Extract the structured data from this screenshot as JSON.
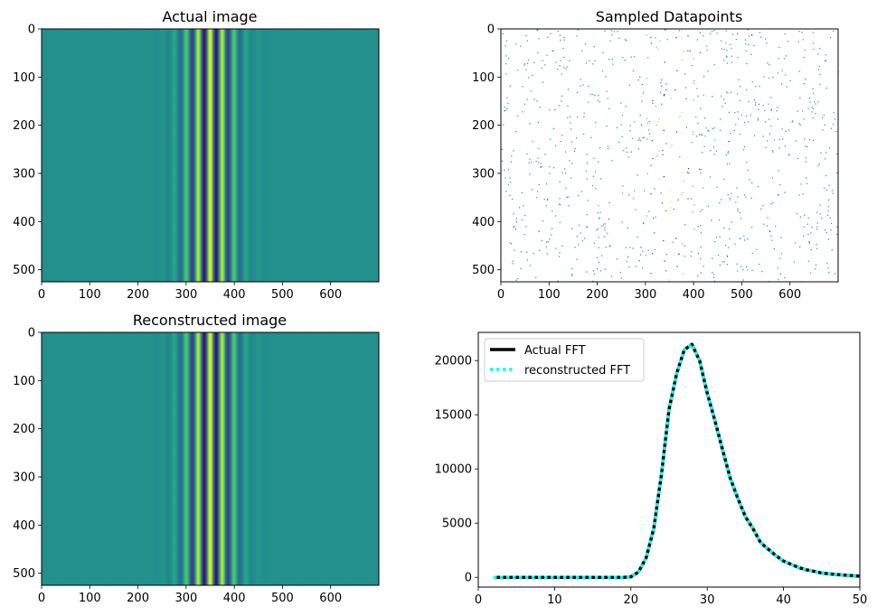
{
  "chart_data": [
    {
      "type": "heatmap",
      "title": "Actual image",
      "image_shape": [
        525,
        700
      ],
      "pattern": "vertical stripes (cosine carrier under Gaussian envelope), constant along rows",
      "stripe_center_x": 350,
      "stripe_period_px": 25,
      "envelope_sigma_px": 40,
      "colormap": "viridis",
      "xlim": [
        0,
        700
      ],
      "ylim": [
        525,
        0
      ],
      "xticks": [
        0,
        100,
        200,
        300,
        400,
        500,
        600
      ],
      "yticks": [
        0,
        100,
        200,
        300,
        400,
        500
      ],
      "xlabel": "",
      "ylabel": ""
    },
    {
      "type": "scatter",
      "title": "Sampled Datapoints",
      "description": "sparse random pixel samples on white background",
      "xlim": [
        0,
        700
      ],
      "ylim": [
        525,
        0
      ],
      "xticks": [
        0,
        100,
        200,
        300,
        400,
        500,
        600
      ],
      "yticks": [
        0,
        100,
        200,
        300,
        400,
        500
      ],
      "xlabel": "",
      "ylabel": ""
    },
    {
      "type": "heatmap",
      "title": "Reconstructed image",
      "image_shape": [
        525,
        700
      ],
      "pattern": "vertical stripes (cosine carrier under Gaussian envelope), constant along rows",
      "stripe_center_x": 350,
      "stripe_period_px": 25,
      "envelope_sigma_px": 40,
      "colormap": "viridis",
      "xlim": [
        0,
        700
      ],
      "ylim": [
        525,
        0
      ],
      "xticks": [
        0,
        100,
        200,
        300,
        400,
        500,
        600
      ],
      "yticks": [
        0,
        100,
        200,
        300,
        400,
        500
      ],
      "xlabel": "",
      "ylabel": ""
    },
    {
      "type": "line",
      "title": "",
      "xlabel": "",
      "ylabel": "",
      "xlim": [
        0,
        50
      ],
      "ylim": [
        -900,
        22600
      ],
      "xticks": [
        0,
        10,
        20,
        30,
        40,
        50
      ],
      "yticks": [
        0,
        5000,
        10000,
        15000,
        20000
      ],
      "legend_position": "top-left",
      "x": [
        2,
        3,
        4,
        5,
        6,
        7,
        8,
        9,
        10,
        11,
        12,
        13,
        14,
        15,
        16,
        17,
        18,
        19,
        20,
        21,
        22,
        23,
        24,
        25,
        26,
        27,
        28,
        29,
        30,
        31,
        32,
        33,
        34,
        35,
        36,
        37,
        38,
        39,
        40,
        41,
        42,
        43,
        44,
        45,
        46,
        47,
        48,
        49,
        50
      ],
      "series": [
        {
          "name": "Actual FFT",
          "color": "#000000",
          "style": "solid",
          "values": [
            0,
            0,
            0,
            0,
            0,
            0,
            0,
            0,
            0,
            0,
            0,
            0,
            0,
            0,
            0,
            0,
            0,
            0,
            50,
            500,
            1800,
            4500,
            9500,
            15500,
            18800,
            21000,
            21500,
            20000,
            17000,
            14500,
            11800,
            9200,
            7300,
            5600,
            4500,
            3200,
            2600,
            2000,
            1500,
            1200,
            900,
            700,
            550,
            400,
            320,
            260,
            200,
            150,
            110
          ]
        },
        {
          "name": "reconstructed FFT",
          "color": "#00ffff",
          "style": "dotted",
          "values": [
            0,
            0,
            0,
            0,
            0,
            0,
            0,
            0,
            0,
            0,
            0,
            0,
            0,
            0,
            0,
            0,
            0,
            0,
            50,
            500,
            1800,
            4500,
            9500,
            15500,
            18800,
            21000,
            21500,
            20000,
            17000,
            14500,
            11800,
            9200,
            7300,
            5600,
            4500,
            3200,
            2600,
            2000,
            1500,
            1200,
            900,
            700,
            550,
            400,
            320,
            260,
            200,
            150,
            110
          ]
        }
      ]
    }
  ]
}
